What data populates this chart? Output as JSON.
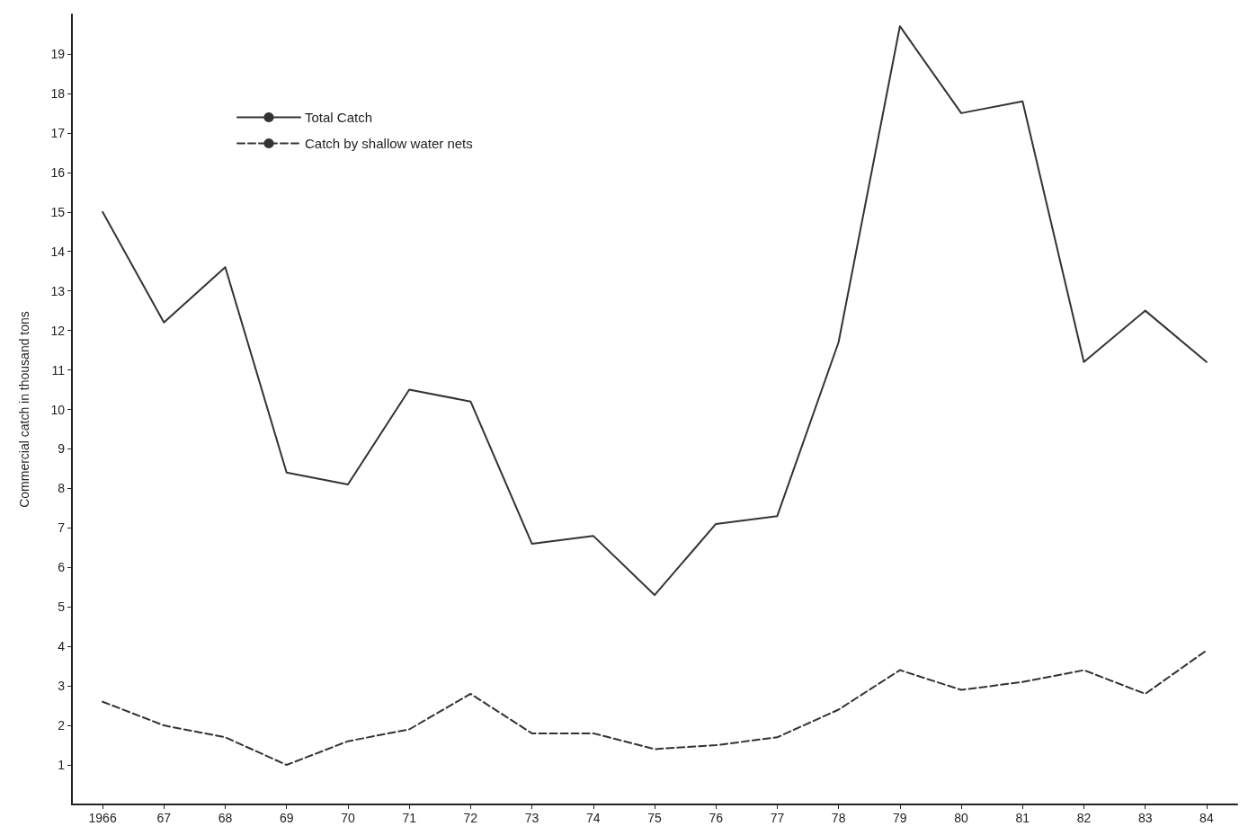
{
  "chart_data": {
    "type": "line",
    "ylabel": "Commercial catch in thousand tons",
    "categories": [
      "1966",
      "67",
      "68",
      "69",
      "70",
      "71",
      "72",
      "73",
      "74",
      "75",
      "76",
      "77",
      "78",
      "79",
      "80",
      "81",
      "82",
      "83",
      "84"
    ],
    "series": [
      {
        "name": "Total Catch",
        "color": "#333333",
        "line_style": "solid",
        "values": [
          15.0,
          12.2,
          13.6,
          8.4,
          8.1,
          10.5,
          10.2,
          6.6,
          6.8,
          5.3,
          7.1,
          7.3,
          11.7,
          19.7,
          17.5,
          17.8,
          11.2,
          12.5,
          11.2
        ]
      },
      {
        "name": "Catch by shallow water nets",
        "color": "#333333",
        "line_style": "dashed",
        "values": [
          2.6,
          2.0,
          1.7,
          1.0,
          1.6,
          1.9,
          2.8,
          1.8,
          1.8,
          1.4,
          1.5,
          1.7,
          2.4,
          3.4,
          2.9,
          3.1,
          3.4,
          2.8,
          3.9
        ]
      }
    ],
    "ylim": [
      0,
      20
    ],
    "yticks": [
      1,
      2,
      3,
      4,
      5,
      6,
      7,
      8,
      9,
      10,
      11,
      12,
      13,
      14,
      15,
      16,
      17,
      18,
      19
    ],
    "grid": false,
    "legend": "top left",
    "marker": "none"
  }
}
